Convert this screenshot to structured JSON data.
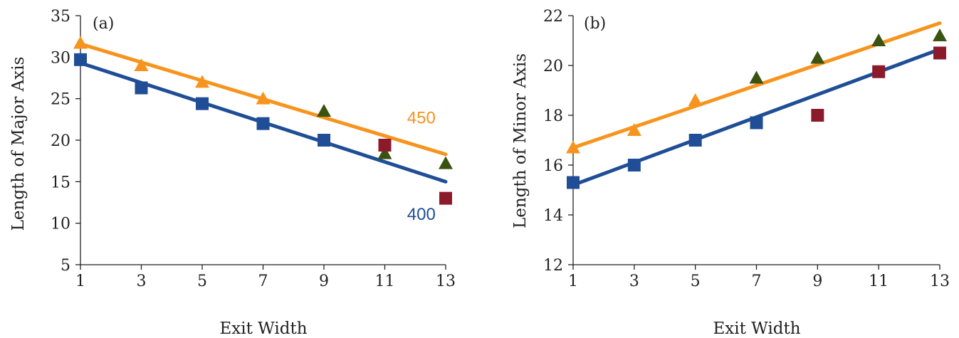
{
  "colors": {
    "line_450": "#f7941d",
    "line_400": "#1f4e96",
    "outlier_triangle": "#3a5311",
    "outlier_square": "#8b1a2b",
    "axis": "#222222"
  },
  "chart_data": [
    {
      "type": "scatter",
      "panel_label": "(a)",
      "xlabel": "Exit Width",
      "ylabel": "Length of Major Axis",
      "xlim": [
        1,
        13
      ],
      "ylim": [
        5,
        35
      ],
      "xticks": [
        1,
        3,
        5,
        7,
        9,
        11,
        13
      ],
      "yticks": [
        5,
        10,
        15,
        20,
        25,
        30,
        35
      ],
      "grid": false,
      "series": [
        {
          "name": "450",
          "marker": "triangle",
          "color": "#f7941d",
          "points": [
            {
              "x": 1,
              "y": 31.7,
              "color": "#f7941d"
            },
            {
              "x": 3,
              "y": 29.0,
              "color": "#f7941d"
            },
            {
              "x": 5,
              "y": 27.0,
              "color": "#f7941d"
            },
            {
              "x": 7,
              "y": 25.0,
              "color": "#f7941d"
            },
            {
              "x": 9,
              "y": 23.5,
              "color": "#3a5311"
            },
            {
              "x": 11,
              "y": 18.4,
              "color": "#3a5311"
            },
            {
              "x": 13,
              "y": 17.2,
              "color": "#3a5311"
            }
          ],
          "fit": {
            "x": [
              1,
              13
            ],
            "y": [
              31.6,
              18.3
            ]
          }
        },
        {
          "name": "400",
          "marker": "square",
          "color": "#1f4e96",
          "points": [
            {
              "x": 1,
              "y": 29.7,
              "color": "#1f4e96"
            },
            {
              "x": 3,
              "y": 26.3,
              "color": "#1f4e96"
            },
            {
              "x": 5,
              "y": 24.4,
              "color": "#1f4e96"
            },
            {
              "x": 7,
              "y": 22.0,
              "color": "#1f4e96"
            },
            {
              "x": 9,
              "y": 20.0,
              "color": "#1f4e96"
            },
            {
              "x": 11,
              "y": 19.4,
              "color": "#8b1a2b"
            },
            {
              "x": 13,
              "y": 13.0,
              "color": "#8b1a2b"
            }
          ],
          "fit": {
            "x": [
              1,
              13
            ],
            "y": [
              29.3,
              15.0
            ]
          }
        }
      ],
      "annotations": [
        {
          "text": "450",
          "series": "450",
          "x": 12.2,
          "y": 22.0
        },
        {
          "text": "400",
          "series": "400",
          "x": 12.2,
          "y": 10.4
        }
      ]
    },
    {
      "type": "scatter",
      "panel_label": "(b)",
      "xlabel": "Exit Width",
      "ylabel": "Length of Minor Axis",
      "xlim": [
        1,
        13
      ],
      "ylim": [
        12,
        22
      ],
      "xticks": [
        1,
        3,
        5,
        7,
        9,
        11,
        13
      ],
      "yticks": [
        12,
        14,
        16,
        18,
        20,
        22
      ],
      "grid": false,
      "series": [
        {
          "name": "450",
          "marker": "triangle",
          "color": "#f7941d",
          "points": [
            {
              "x": 1,
              "y": 16.7,
              "color": "#f7941d"
            },
            {
              "x": 3,
              "y": 17.4,
              "color": "#f7941d"
            },
            {
              "x": 5,
              "y": 18.6,
              "color": "#f7941d"
            },
            {
              "x": 7,
              "y": 19.5,
              "color": "#3a5311"
            },
            {
              "x": 9,
              "y": 20.3,
              "color": "#3a5311"
            },
            {
              "x": 11,
              "y": 21.0,
              "color": "#3a5311"
            },
            {
              "x": 13,
              "y": 21.2,
              "color": "#3a5311"
            }
          ],
          "fit": {
            "x": [
              1,
              13
            ],
            "y": [
              16.7,
              21.7
            ]
          }
        },
        {
          "name": "400",
          "marker": "square",
          "color": "#1f4e96",
          "points": [
            {
              "x": 1,
              "y": 15.3,
              "color": "#1f4e96"
            },
            {
              "x": 3,
              "y": 16.0,
              "color": "#1f4e96"
            },
            {
              "x": 5,
              "y": 17.0,
              "color": "#1f4e96"
            },
            {
              "x": 7,
              "y": 17.7,
              "color": "#1f4e96"
            },
            {
              "x": 9,
              "y": 18.0,
              "color": "#8b1a2b"
            },
            {
              "x": 11,
              "y": 19.75,
              "color": "#8b1a2b"
            },
            {
              "x": 13,
              "y": 20.5,
              "color": "#8b1a2b"
            }
          ],
          "fit": {
            "x": [
              1,
              13
            ],
            "y": [
              15.2,
              20.65
            ]
          }
        }
      ],
      "annotations": []
    }
  ]
}
